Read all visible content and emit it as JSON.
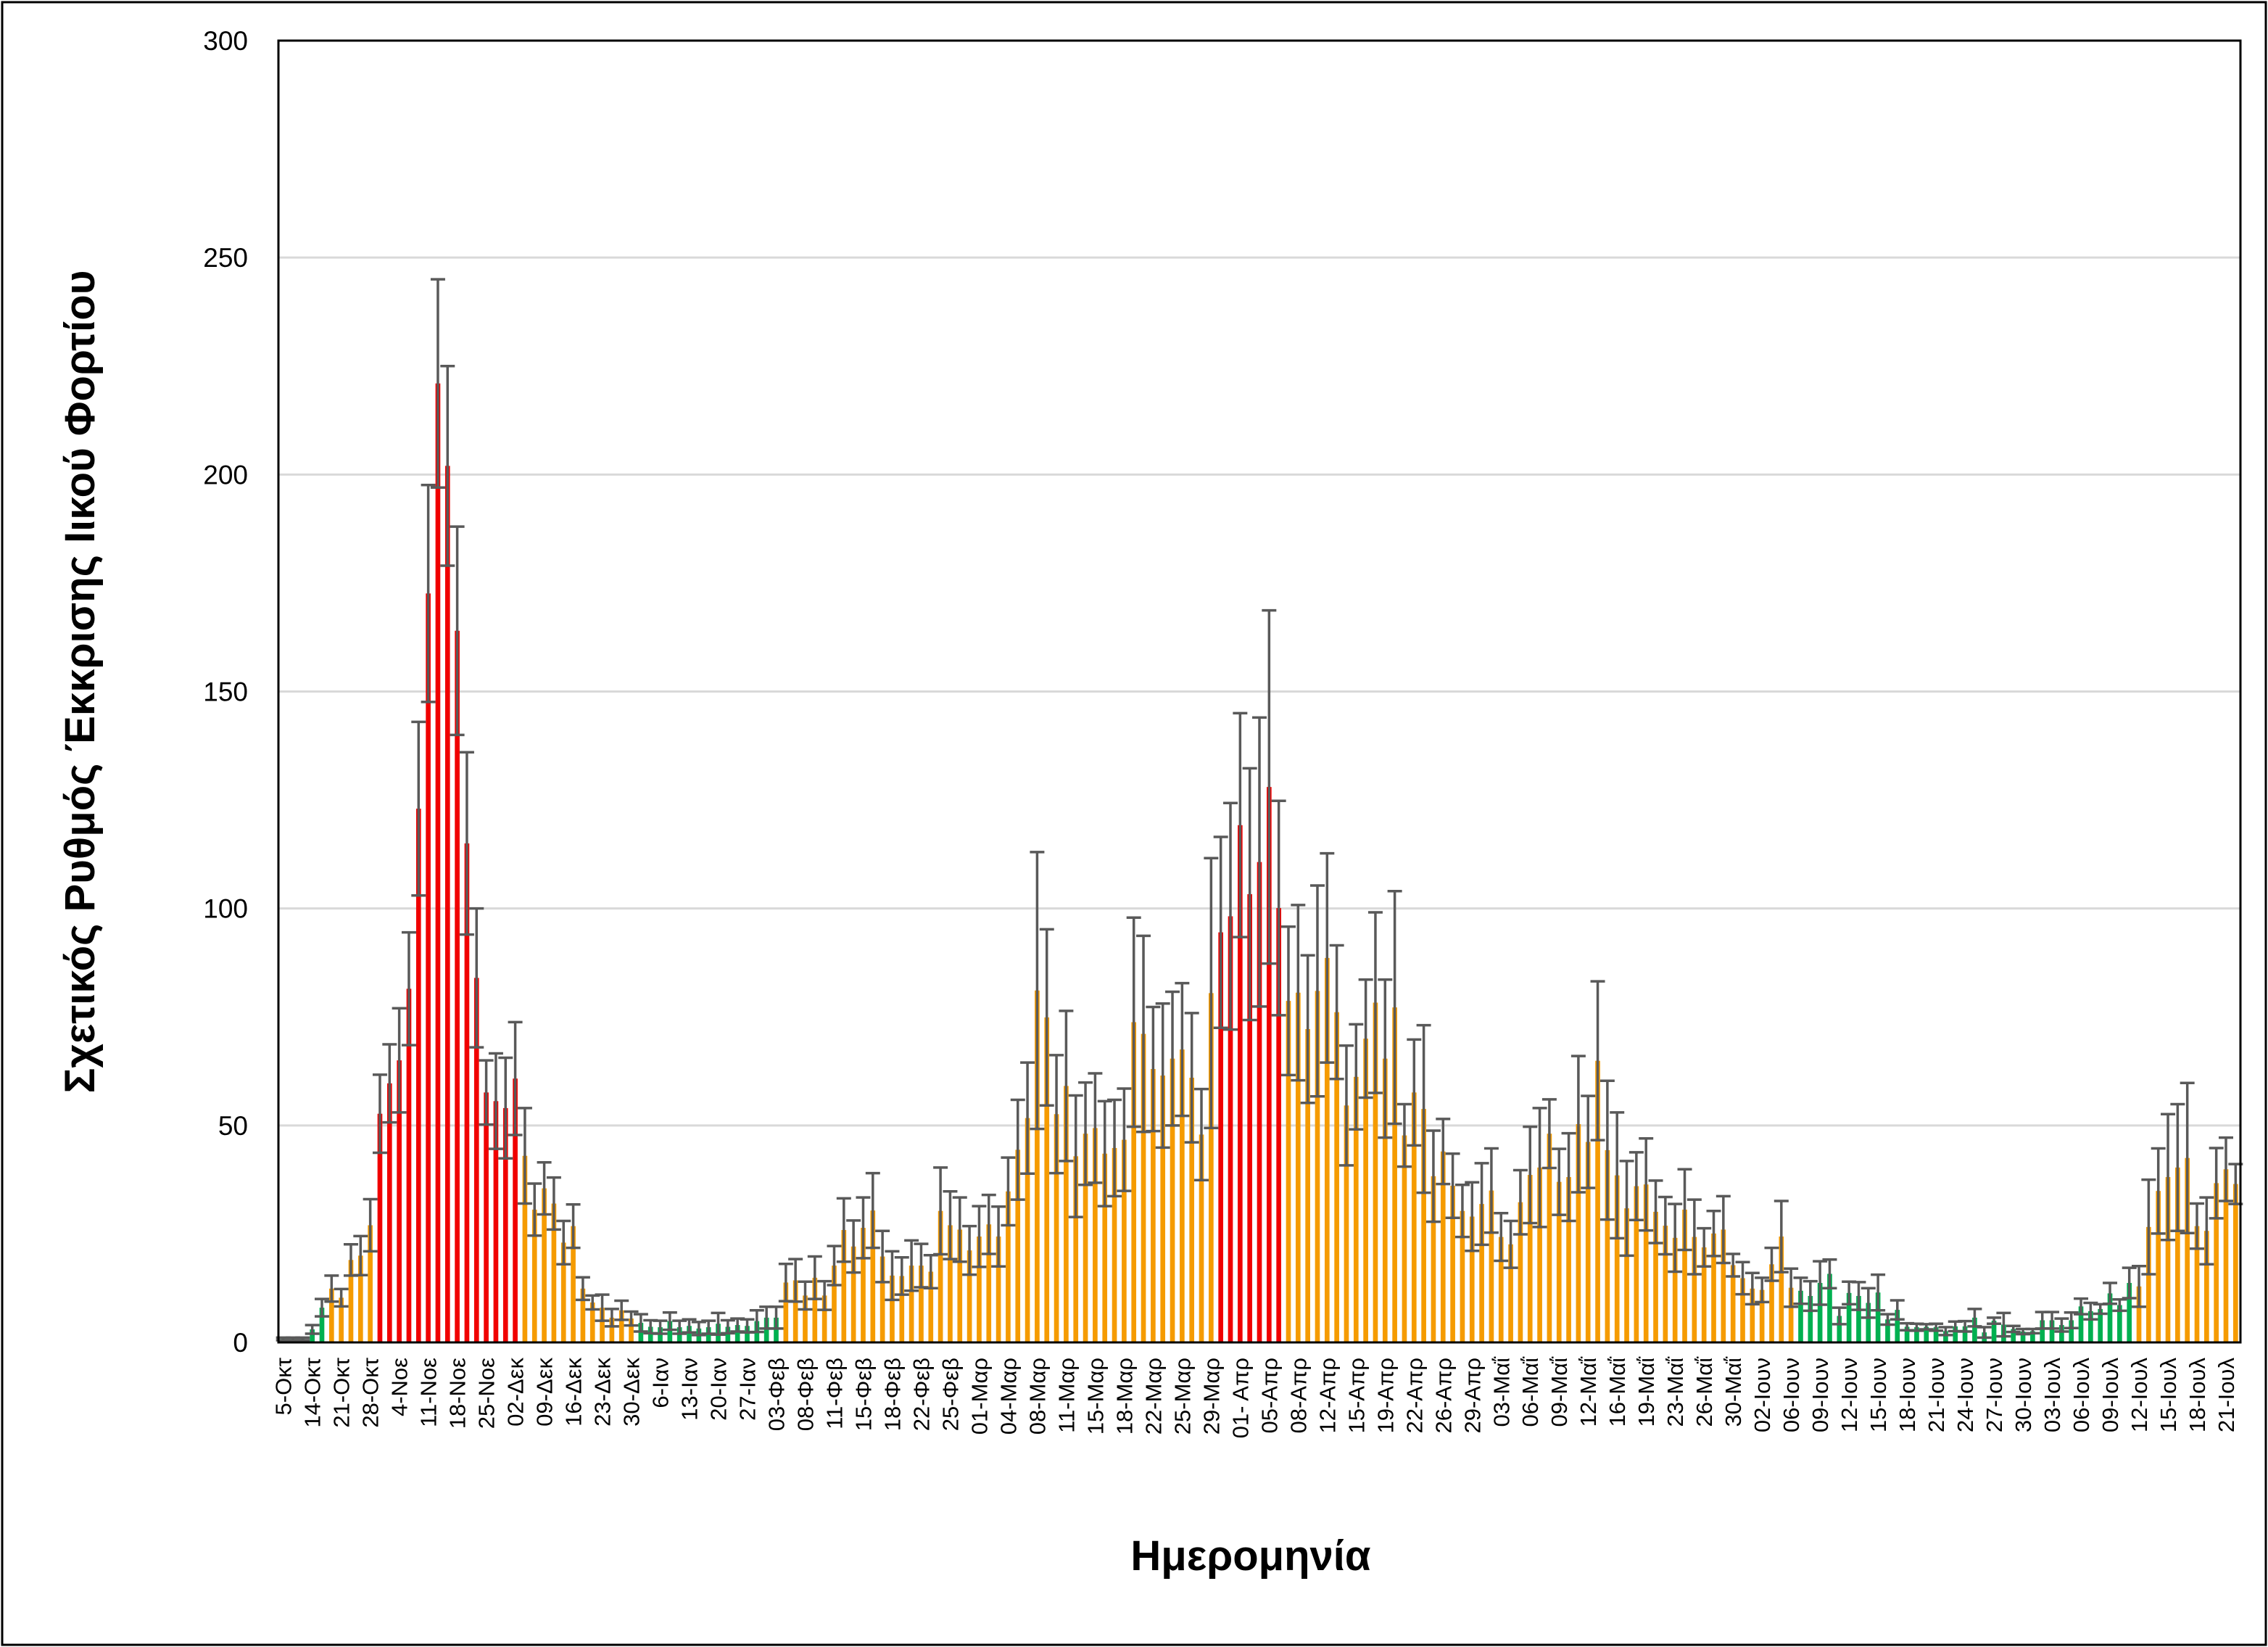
{
  "chart_data": {
    "type": "bar",
    "title": "",
    "xlabel": "Ημερομηνία",
    "ylabel": "Σχετικός Ρυθμός Έκκρισης Ιικού Φορτίου",
    "ylim": [
      0,
      300
    ],
    "yticks": [
      0,
      50,
      100,
      150,
      200,
      250,
      300
    ],
    "grid": "horizontal",
    "legend": "none",
    "tick_labels": [
      "5-Οκτ",
      "14-Οκτ",
      "21-Οκτ",
      "28-Οκτ",
      "4-Νοε",
      "11-Νοε",
      "18-Νοε",
      "25-Νοε",
      "02-Δεκ",
      "09-Δεκ",
      "16-Δεκ",
      "23-Δεκ",
      "30-Δεκ",
      "6-Ιαν",
      "13-Ιαν",
      "20-Ιαν",
      "27-Ιαν",
      "03-Φεβ",
      "08-Φεβ",
      "11-Φεβ",
      "15-Φεβ",
      "18-Φεβ",
      "22-Φεβ",
      "25-Φεβ",
      "01-Μαρ",
      "04-Μαρ",
      "08-Μαρ",
      "11-Μαρ",
      "15-Μαρ",
      "18-Μαρ",
      "22-Μαρ",
      "25-Μαρ",
      "29-Μαρ",
      "01- Απρ",
      "05-Απρ",
      "08-Απρ",
      "12-Απρ",
      "15-Απρ",
      "19-Απρ",
      "22-Απρ",
      "26-Απρ",
      "29-Απρ",
      "03-Μαΐ",
      "06-Μαΐ",
      "09-Μαΐ",
      "12-Μαΐ",
      "16-Μαΐ",
      "19-Μαΐ",
      "23-Μαΐ",
      "26-Μαΐ",
      "30-Μαΐ",
      "02-Ιουν",
      "06-Ιουν",
      "09-Ιουν",
      "12-Ιουν",
      "15-Ιουν",
      "18-Ιουν",
      "21-Ιουν",
      "24-Ιουν",
      "27-Ιουν",
      "30-Ιουν",
      "03-Ιουλ",
      "06-Ιουλ",
      "09-Ιουλ",
      "12-Ιουλ",
      "15-Ιουλ",
      "18-Ιουλ",
      "21-Ιουλ"
    ],
    "bars_per_tick_label": 3,
    "values": [
      0.8,
      0.8,
      0.8,
      3,
      8,
      12.4,
      10.3,
      19,
      20,
      27,
      52.7,
      59.7,
      65,
      81.5,
      123,
      172.6,
      221,
      202,
      164,
      115,
      84,
      57.6,
      55.6,
      54,
      60.8,
      43,
      30.6,
      35.5,
      32,
      23,
      26.8,
      12.4,
      9.2,
      8,
      5.7,
      7.4,
      5.5,
      4.5,
      3.6,
      3.5,
      4.9,
      3.5,
      3.8,
      3.2,
      3.5,
      4.3,
      3.6,
      4,
      3.8,
      4.9,
      5.7,
      5.7,
      13.8,
      14.3,
      10.8,
      14.9,
      10.8,
      17.7,
      25.9,
      22.1,
      26.4,
      30.4,
      19.8,
      15.4,
      15.3,
      17.7,
      17.7,
      16.3,
      30.3,
      27,
      26,
      21.2,
      24.4,
      27.2,
      24.4,
      34.8,
      44.4,
      51.7,
      81.1,
      74.9,
      52.6,
      59.1,
      42.9,
      48.1,
      49.4,
      43.5,
      44.8,
      46.7,
      73.8,
      71.1,
      63,
      61.5,
      65.4,
      67.5,
      61,
      47.9,
      80.5,
      94.5,
      98.2,
      119.2,
      103.3,
      110.7,
      128,
      100.1,
      78.7,
      80.6,
      72.2,
      81,
      88.6,
      76.1,
      54.6,
      61.2,
      70,
      78.3,
      65.4,
      77.2,
      47.7,
      57.6,
      53.8,
      38.3,
      44,
      36.1,
      30.3,
      29,
      31.9,
      35,
      24.3,
      22.6,
      32.3,
      38.6,
      40.3,
      48.1,
      37,
      38.1,
      50.3,
      46.2,
      64.9,
      44.3,
      38.5,
      30.9,
      36,
      36.4,
      30.1,
      26.9,
      24.1,
      30.6,
      24.3,
      21.9,
      25.1,
      26,
      17.8,
      14.8,
      12.4,
      12.1,
      18,
      24.4,
      12.6,
      11.9,
      10.7,
      13.7,
      15.8,
      6.1,
      11.4,
      10.7,
      9.1,
      11.5,
      5.3,
      7.5,
      3.6,
      3.5,
      3.6,
      3.5,
      2.6,
      3.7,
      3.7,
      5.7,
      2.3,
      5,
      4.1,
      3.1,
      2.5,
      2.6,
      5.1,
      5.1,
      4,
      5.1,
      8.3,
      7.2,
      7.7,
      11.3,
      8.6,
      13.7,
      12.9,
      26.6,
      34.9,
      38.1,
      40.3,
      42.5,
      26.8,
      25.7,
      36.7,
      39.9,
      36.5
    ],
    "errors": [
      0.3,
      0.3,
      0.3,
      1,
      2,
      3,
      2,
      3.6,
      4.5,
      6,
      9,
      9,
      12,
      13,
      20,
      25,
      24,
      23,
      24,
      21,
      16,
      7.4,
      11,
      11.6,
      13,
      11,
      6,
      6,
      6,
      5,
      5,
      2.6,
      1.6,
      3,
      2,
      2.2,
      1.6,
      2,
      1.5,
      1.5,
      2,
      1.5,
      1.5,
      1.5,
      1.5,
      2.5,
      1.5,
      1.5,
      1.5,
      2.5,
      2.5,
      2.5,
      4.3,
      4.9,
      3.2,
      4.9,
      3.3,
      4.5,
      7.3,
      6,
      7,
      8.6,
      5.9,
      5.6,
      4.3,
      5.8,
      5,
      3.8,
      10,
      7.8,
      7.4,
      5.6,
      7,
      6.8,
      6.9,
      7.8,
      11.5,
      12.8,
      31.9,
      20.3,
      13.6,
      17.3,
      14,
      11.8,
      12.6,
      12.1,
      11.1,
      11.8,
      24.1,
      22.6,
      14.3,
      16.6,
      15.4,
      15.3,
      14.9,
      10.5,
      31.1,
      22,
      26.1,
      25.8,
      29,
      33.3,
      40.7,
      24.7,
      17.1,
      20.2,
      17,
      24.3,
      24.1,
      15.4,
      13.8,
      12.1,
      13.6,
      20.8,
      18.2,
      26.8,
      7.2,
      12.2,
      19.3,
      10.5,
      7.5,
      7.4,
      6,
      7.9,
      9.4,
      9.7,
      5.5,
      5.4,
      7.4,
      11.1,
      13.7,
      7.9,
      7.6,
      10.1,
      15.7,
      10.6,
      18.3,
      16,
      14.5,
      10.9,
      7.8,
      10.6,
      7.2,
      6.6,
      7.8,
      9.3,
      8.6,
      4.4,
      5.2,
      7.7,
      2.6,
      3.7,
      3.6,
      2.8,
      3.8,
      8.2,
      4.4,
      3,
      3.4,
      5,
      3.3,
      1.9,
      2.6,
      3.2,
      3.4,
      4.1,
      1.2,
      2.2,
      0.8,
      0.8,
      0.6,
      0.8,
      0.9,
      1.1,
      1.2,
      2,
      1.2,
      0.7,
      2.7,
      0.7,
      0.6,
      0.5,
      1.9,
      1.9,
      1.5,
      1.8,
      1.8,
      1.9,
      1.1,
      2.4,
      1.3,
      3.5,
      4.7,
      10.9,
      9.8,
      14.5,
      14.6,
      17.3,
      5.2,
      7.7,
      8.1,
      7.3,
      4.6
    ],
    "color_ranges": [
      [
        0,
        4,
        "green"
      ],
      [
        5,
        9,
        "orange"
      ],
      [
        10,
        24,
        "red"
      ],
      [
        25,
        36,
        "orange"
      ],
      [
        37,
        51,
        "green"
      ],
      [
        52,
        96,
        "orange"
      ],
      [
        97,
        103,
        "red"
      ],
      [
        104,
        156,
        "orange"
      ],
      [
        157,
        191,
        "green"
      ],
      [
        192,
        202,
        "orange"
      ]
    ],
    "colors": {
      "red": "#F00000",
      "orange": "#F59B00",
      "green": "#00B050",
      "error_bar": "#595959",
      "grid": "#D9D9D9"
    }
  }
}
